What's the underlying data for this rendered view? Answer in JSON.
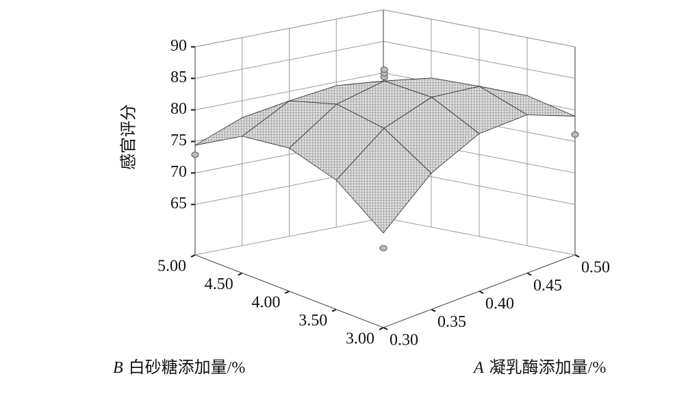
{
  "chart_data": {
    "type": "surface",
    "zlabel": "感官评分",
    "xlabel_var": "A",
    "xlabel": "凝乳酶添加量/%",
    "ylabel_var": "B",
    "ylabel": "白砂糖添加量/%",
    "xlim": [
      0.3,
      0.5
    ],
    "ylim": [
      3,
      5
    ],
    "zlim": [
      57,
      90
    ],
    "xticks": [
      {
        "value": 0.3,
        "label": "0.30"
      },
      {
        "value": 0.35,
        "label": "0.35"
      },
      {
        "value": 0.4,
        "label": "0.40"
      },
      {
        "value": 0.45,
        "label": "0.45"
      },
      {
        "value": 0.5,
        "label": "0.50"
      }
    ],
    "yticks": [
      {
        "value": 3,
        "label": "3.00"
      },
      {
        "value": 3.5,
        "label": "3.50"
      },
      {
        "value": 4,
        "label": "4.00"
      },
      {
        "value": 4.5,
        "label": "4.50"
      },
      {
        "value": 5,
        "label": "5.00"
      }
    ],
    "zticks": [
      65,
      70,
      75,
      80,
      85,
      90
    ],
    "x": [
      0.3,
      0.35,
      0.4,
      0.45,
      0.5
    ],
    "y": [
      3,
      3.5,
      4,
      4.5,
      5
    ],
    "z": [
      [
        72.0,
        77.5,
        79.7,
        78.7,
        74.4
      ],
      [
        78.6,
        83.2,
        84.5,
        82.5,
        77.3
      ],
      [
        82.0,
        85.6,
        86.0,
        83.1,
        77.0
      ],
      [
        82.1,
        84.8,
        84.3,
        80.5,
        73.4
      ],
      [
        79.0,
        80.8,
        79.3,
        74.6,
        66.6
      ]
    ],
    "points": {
      "x": [
        0.3,
        0.3,
        0.5,
        0.4,
        0.4,
        0.4
      ],
      "y": [
        3,
        5,
        3,
        4,
        4,
        4
      ],
      "z": [
        69.6,
        72.9,
        76.1,
        86.6,
        87.2,
        87.8
      ]
    }
  }
}
